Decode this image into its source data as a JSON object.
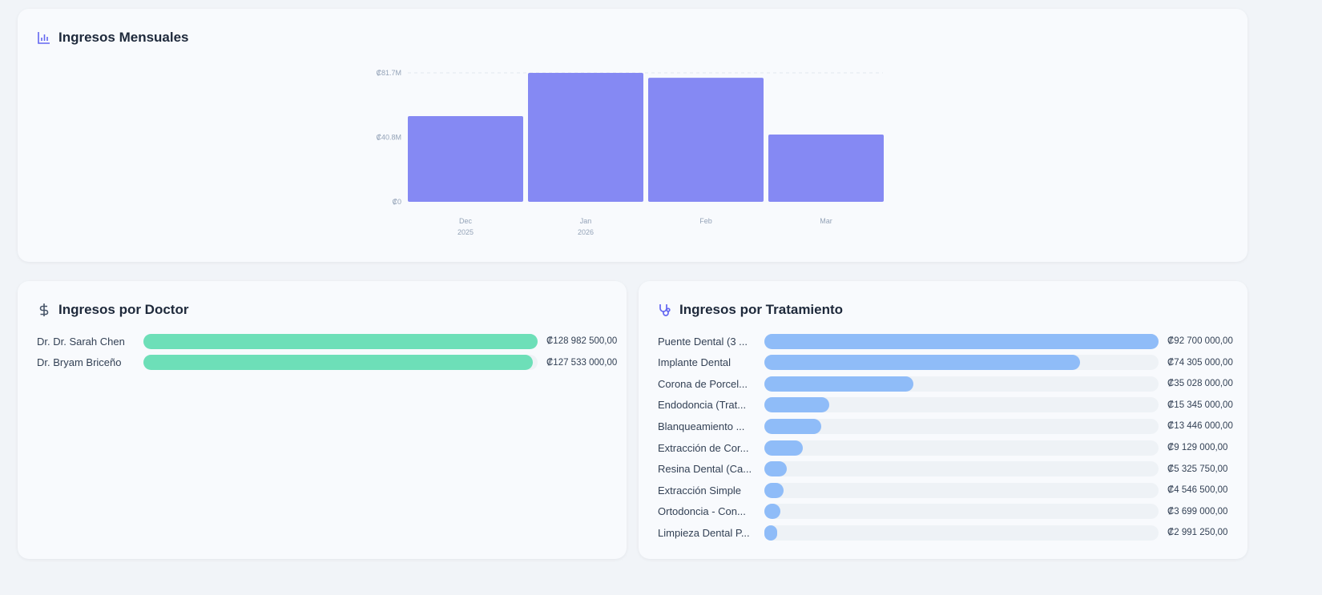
{
  "colors": {
    "bar": "#8589f3",
    "doctor": "#6ddfb8",
    "treatment": "#8fbcf8",
    "track": "#eef2f6",
    "icon": "#6366f1"
  },
  "monthly": {
    "title": "Ingresos Mensuales",
    "icon": "bar-chart-icon"
  },
  "doctors": {
    "title": "Ingresos por Doctor",
    "icon": "dollar-icon",
    "items": [
      {
        "label": "Dr. Dr. Sarah Chen",
        "value": 128982500,
        "display": "₡128 982 500,00"
      },
      {
        "label": "Dr. Bryam Briceño",
        "value": 127533000,
        "display": "₡127 533 000,00"
      }
    ]
  },
  "treatments": {
    "title": "Ingresos por Tratamiento",
    "icon": "stethoscope-icon",
    "items": [
      {
        "label": "Puente Dental (3 ...",
        "value": 92700000,
        "display": "₡92 700 000,00"
      },
      {
        "label": "Implante Dental",
        "value": 74305000,
        "display": "₡74 305 000,00"
      },
      {
        "label": "Corona de Porcel...",
        "value": 35028000,
        "display": "₡35 028 000,00"
      },
      {
        "label": "Endodoncia (Trat...",
        "value": 15345000,
        "display": "₡15 345 000,00"
      },
      {
        "label": "Blanqueamiento ...",
        "value": 13446000,
        "display": "₡13 446 000,00"
      },
      {
        "label": "Extracción de Cor...",
        "value": 9129000,
        "display": "₡9 129 000,00"
      },
      {
        "label": "Resina Dental (Ca...",
        "value": 5325750,
        "display": "₡5 325 750,00"
      },
      {
        "label": "Extracción Simple",
        "value": 4546500,
        "display": "₡4 546 500,00"
      },
      {
        "label": "Ortodoncia - Con...",
        "value": 3699000,
        "display": "₡3 699 000,00"
      },
      {
        "label": "Limpieza Dental P...",
        "value": 2991250,
        "display": "₡2 991 250,00"
      }
    ]
  },
  "chart_data": {
    "type": "bar",
    "title": "Ingresos Mensuales",
    "categories": [
      "Dec",
      "Jan",
      "Feb",
      "Mar"
    ],
    "category_sublabels": [
      "2025",
      "2026",
      "",
      ""
    ],
    "values": [
      54300000,
      81700000,
      78600000,
      42600000
    ],
    "ylim": [
      0,
      81700000
    ],
    "yticks": [
      0,
      40800000,
      81700000
    ],
    "ytick_labels": [
      "₡0",
      "₡40.8M",
      "₡81.7M"
    ],
    "grid": "dashed top line"
  }
}
